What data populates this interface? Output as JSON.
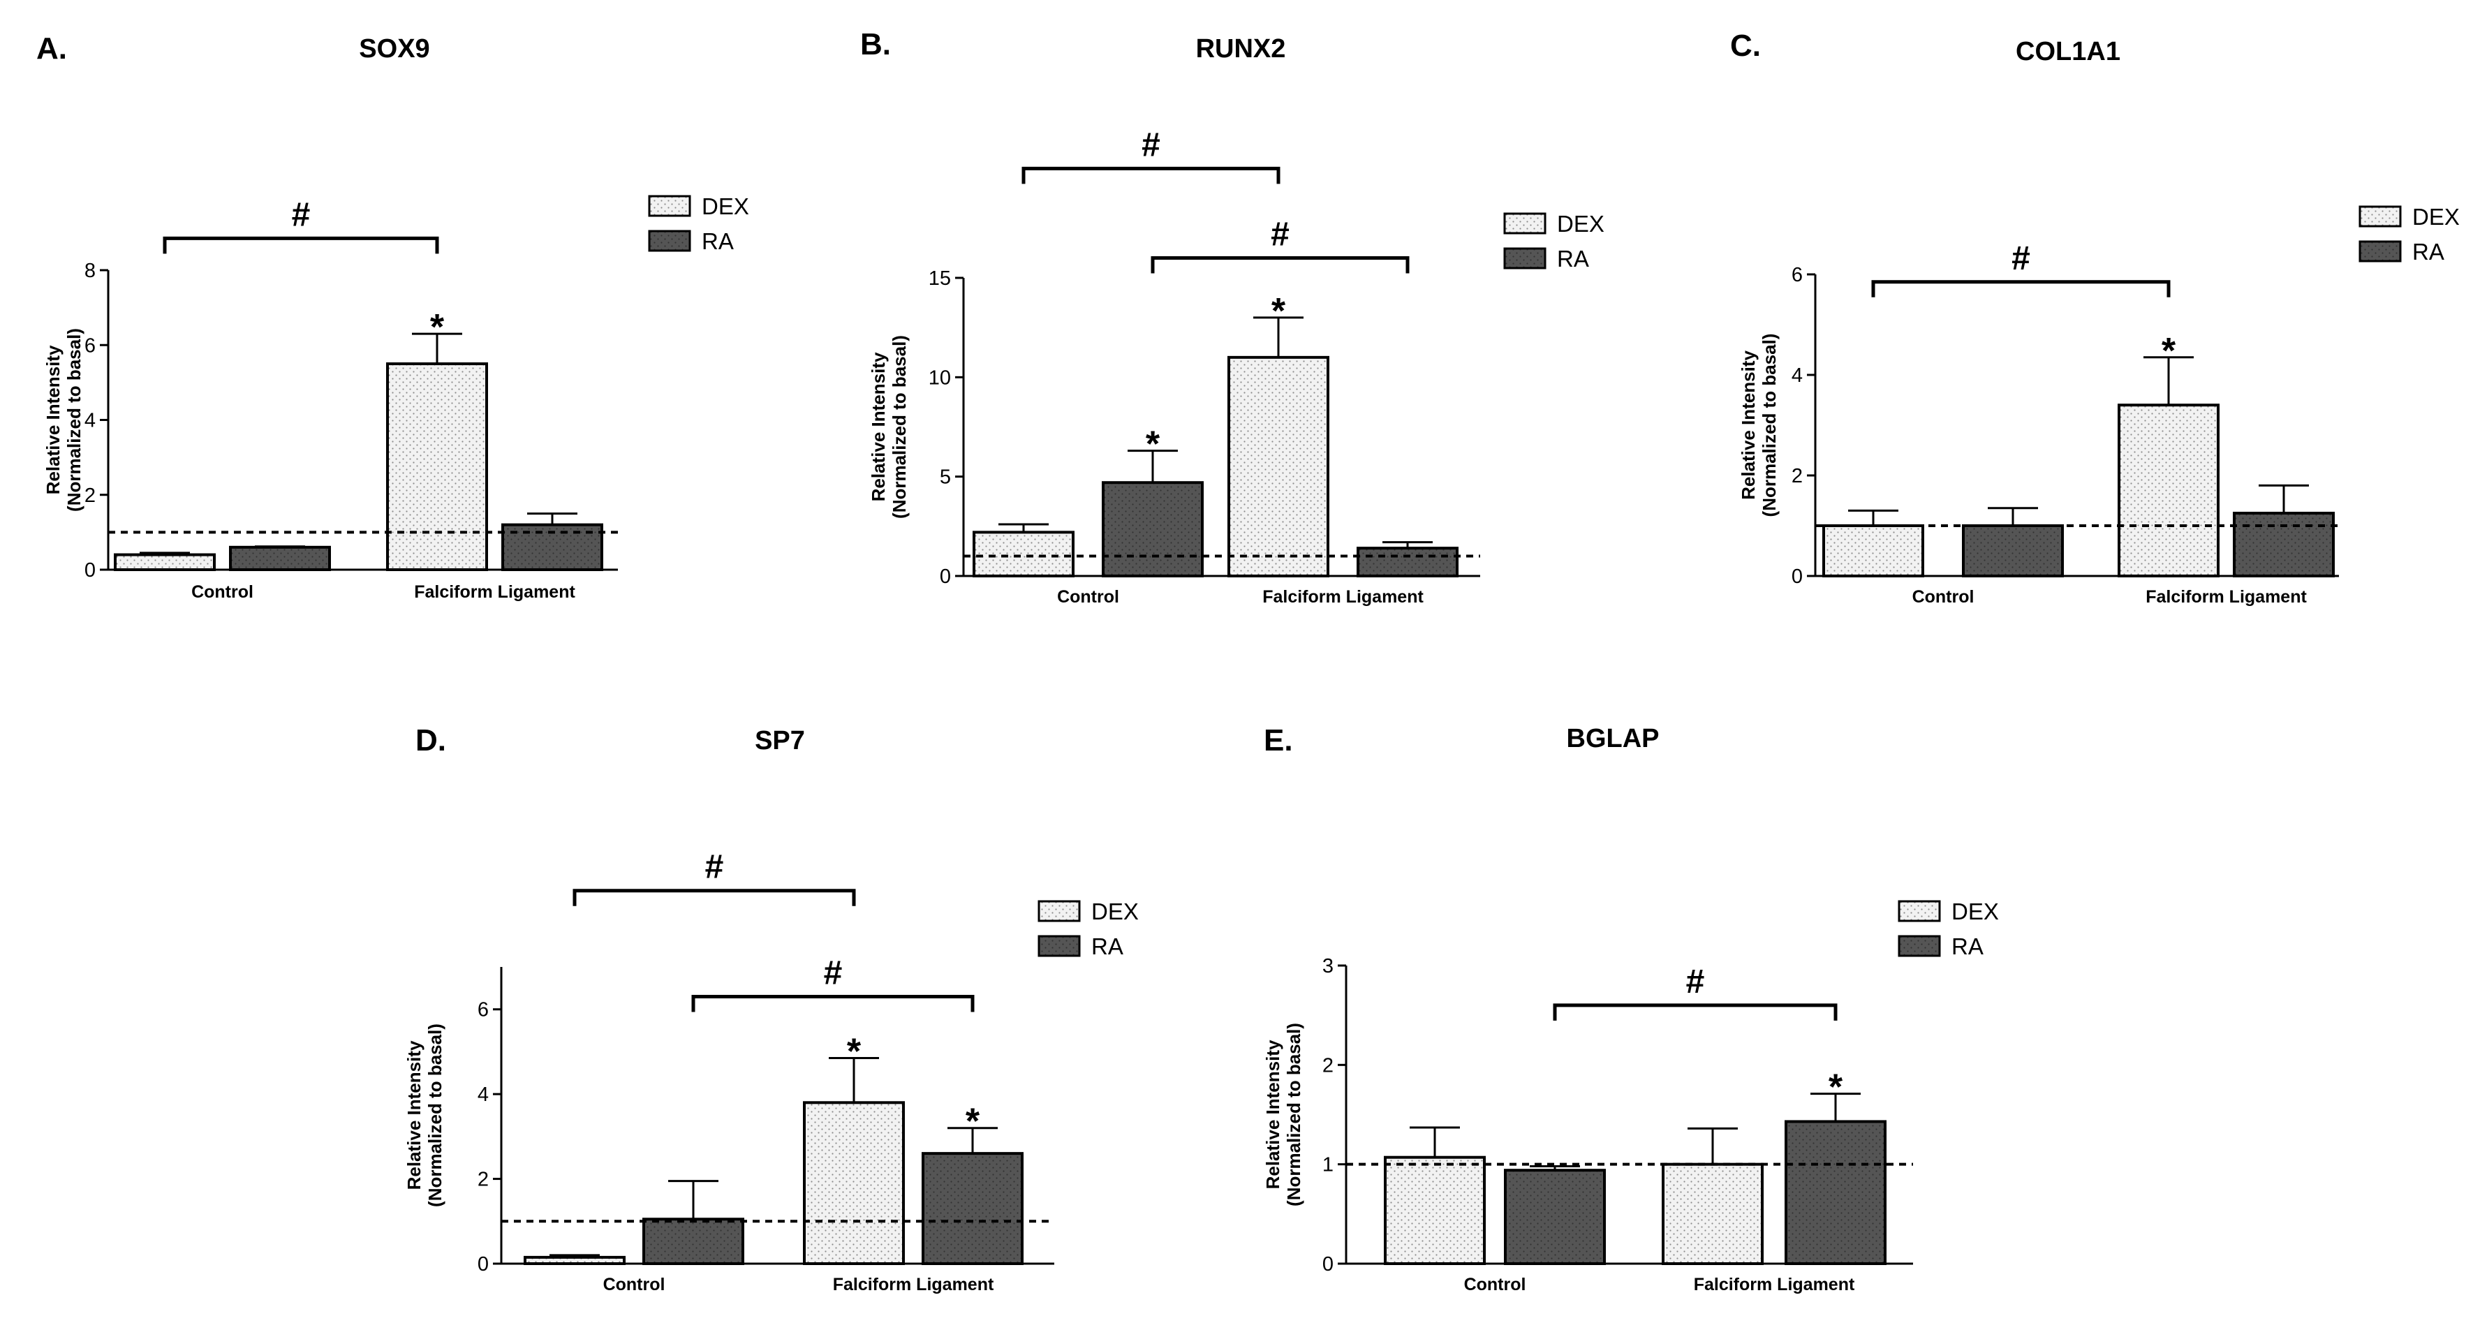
{
  "figure": {
    "legend": {
      "dex_label": "DEX",
      "ra_label": "RA"
    },
    "colors": {
      "dex_fill": "#f2f2f2",
      "dex_dot": "#8c8c8c",
      "ra_fill": "#555555",
      "ra_dot": "#333333",
      "stroke": "#000000"
    },
    "baseline": 1
  },
  "chart_data": [
    {
      "panel": "A.",
      "title": "SOX9",
      "type": "bar",
      "ylabel_line1": "Relative Intensity",
      "ylabel_line2": "(Normalized to basal)",
      "ylim": [
        0,
        8
      ],
      "yticks": [
        "0",
        "2",
        "4",
        "6",
        "8"
      ],
      "categories": [
        "Control",
        "Falciform Ligament"
      ],
      "series": [
        {
          "name": "DEX",
          "values": [
            0.4,
            5.5
          ],
          "errors": [
            0.05,
            0.8
          ]
        },
        {
          "name": "RA",
          "values": [
            0.6,
            1.2
          ],
          "errors": [
            0.02,
            0.3
          ]
        }
      ],
      "stars": [
        {
          "category": 1,
          "series": 0,
          "text": "*"
        }
      ],
      "brackets": [
        {
          "from": [
            0,
            0
          ],
          "to": [
            1,
            0
          ],
          "y": 8.85,
          "text": "#"
        }
      ]
    },
    {
      "panel": "B.",
      "title": "RUNX2",
      "type": "bar",
      "ylabel_line1": "Relative Intensity",
      "ylabel_line2": "(Normalized to basal)",
      "ylim": [
        0,
        15
      ],
      "yticks": [
        "0",
        "5",
        "10",
        "15"
      ],
      "categories": [
        "Control",
        "Falciform Ligament"
      ],
      "series": [
        {
          "name": "DEX",
          "values": [
            2.2,
            11.0
          ],
          "errors": [
            0.4,
            2.0
          ]
        },
        {
          "name": "RA",
          "values": [
            4.7,
            1.4
          ],
          "errors": [
            1.6,
            0.3
          ]
        }
      ],
      "stars": [
        {
          "category": 0,
          "series": 1,
          "text": "*"
        },
        {
          "category": 1,
          "series": 0,
          "text": "*"
        }
      ],
      "brackets": [
        {
          "from": [
            0,
            0
          ],
          "to": [
            1,
            0
          ],
          "y": 20.5,
          "text": "#"
        },
        {
          "from": [
            0,
            1
          ],
          "to": [
            1,
            1
          ],
          "y": 16.0,
          "text": "#"
        }
      ]
    },
    {
      "panel": "C.",
      "title": "COL1A1",
      "type": "bar",
      "ylabel_line1": "Relative Intensity",
      "ylabel_line2": "(Normalized to basal)",
      "ylim": [
        0,
        6
      ],
      "yticks": [
        "0",
        "2",
        "4",
        "6"
      ],
      "categories": [
        "Control",
        "Falciform Ligament"
      ],
      "series": [
        {
          "name": "DEX",
          "values": [
            1.0,
            3.4
          ],
          "errors": [
            0.3,
            0.95
          ]
        },
        {
          "name": "RA",
          "values": [
            1.0,
            1.25
          ],
          "errors": [
            0.35,
            0.55
          ]
        }
      ],
      "stars": [
        {
          "category": 1,
          "series": 0,
          "text": "*"
        }
      ],
      "brackets": [
        {
          "from": [
            0,
            0
          ],
          "to": [
            1,
            0
          ],
          "y": 5.85,
          "text": "#"
        }
      ]
    },
    {
      "panel": "D.",
      "title": "SP7",
      "type": "bar",
      "ylabel_line1": "Relative Intensity",
      "ylabel_line2": "(Normalized to basal)",
      "ylim": [
        0,
        7
      ],
      "yticks": [
        "0",
        "2",
        "4",
        "6"
      ],
      "categories": [
        "Control",
        "Falciform Ligament"
      ],
      "series": [
        {
          "name": "DEX",
          "values": [
            0.15,
            3.8
          ],
          "errors": [
            0.05,
            1.05
          ]
        },
        {
          "name": "RA",
          "values": [
            1.05,
            2.6
          ],
          "errors": [
            0.9,
            0.6
          ]
        }
      ],
      "stars": [
        {
          "category": 1,
          "series": 0,
          "text": "*"
        },
        {
          "category": 1,
          "series": 1,
          "text": "*"
        }
      ],
      "brackets": [
        {
          "from": [
            0,
            0
          ],
          "to": [
            1,
            0
          ],
          "y": 8.8,
          "text": "#"
        },
        {
          "from": [
            0,
            1
          ],
          "to": [
            1,
            1
          ],
          "y": 6.3,
          "text": "#"
        }
      ]
    },
    {
      "panel": "E.",
      "title": "BGLAP",
      "type": "bar",
      "ylabel_line1": "Relative Intensity",
      "ylabel_line2": "(Normalized to basal)",
      "ylim": [
        0,
        3
      ],
      "yticks": [
        "0",
        "1",
        "2",
        "3"
      ],
      "categories": [
        "Control",
        "Falciform Ligament"
      ],
      "series": [
        {
          "name": "DEX",
          "values": [
            1.07,
            1.0
          ],
          "errors": [
            0.3,
            0.36
          ]
        },
        {
          "name": "RA",
          "values": [
            0.94,
            1.43
          ],
          "errors": [
            0.04,
            0.28
          ]
        }
      ],
      "stars": [
        {
          "category": 1,
          "series": 1,
          "text": "*"
        }
      ],
      "brackets": [
        {
          "from": [
            0,
            1
          ],
          "to": [
            1,
            1
          ],
          "y": 2.6,
          "text": "#"
        }
      ]
    }
  ]
}
